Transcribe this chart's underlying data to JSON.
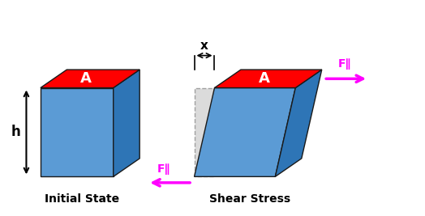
{
  "bg_color": "#ffffff",
  "blue_front": "#5b9bd5",
  "blue_dark": "#2e75b6",
  "red_color": "#ff0000",
  "magenta_color": "#ff00ff",
  "gray_ghost": "#cccccc",
  "label_initial": "Initial State",
  "label_shear": "Shear Stress",
  "label_A": "A",
  "label_h": "h",
  "label_x": "x",
  "label_F": "F∥",
  "figsize": [
    5.24,
    2.67
  ],
  "dpi": 100,
  "xlim": [
    0,
    10.5
  ],
  "ylim": [
    0,
    5.2
  ]
}
